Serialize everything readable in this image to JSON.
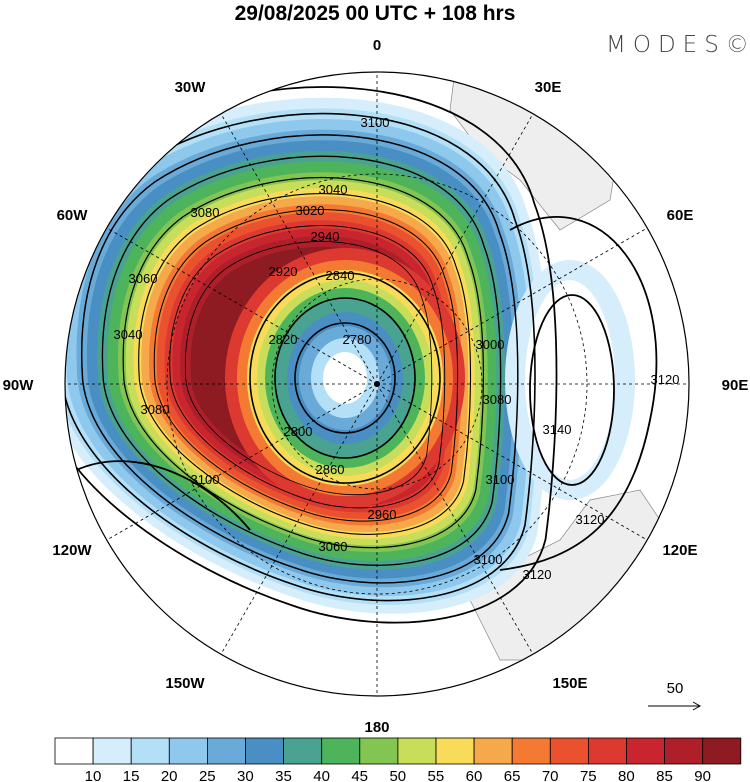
{
  "title": "29/08/2025  00 UTC  + 108 hrs",
  "logo": "MODES©",
  "longitude_labels": [
    "0",
    "30E",
    "60E",
    "90E",
    "120E",
    "150E",
    "180",
    "150W",
    "120W",
    "90W",
    "60W",
    "30W"
  ],
  "contour_labels": [
    "3100",
    "3080",
    "3040",
    "3020",
    "2940",
    "2920",
    "2840",
    "2820",
    "2780",
    "2800",
    "2860",
    "2960",
    "3060",
    "3100",
    "3080",
    "3040",
    "3060",
    "3000",
    "3080",
    "3100",
    "3100",
    "3120",
    "3120",
    "3140",
    "3120"
  ],
  "reference_vector": "50",
  "colorbar": {
    "labels": [
      "10",
      "15",
      "20",
      "25",
      "30",
      "35",
      "40",
      "45",
      "50",
      "55",
      "60",
      "65",
      "70",
      "75",
      "80",
      "85",
      "90"
    ],
    "colors": [
      "#ffffff",
      "#d6eefb",
      "#b4e0f7",
      "#8ec8ec",
      "#6aaad8",
      "#4a8fc4",
      "#4aa391",
      "#4db45c",
      "#82c552",
      "#c8dd5a",
      "#f9db5a",
      "#f6a94a",
      "#f47a33",
      "#e9512f",
      "#dc3a30",
      "#c8252f",
      "#ae1f2a",
      "#8e1a22"
    ]
  }
}
